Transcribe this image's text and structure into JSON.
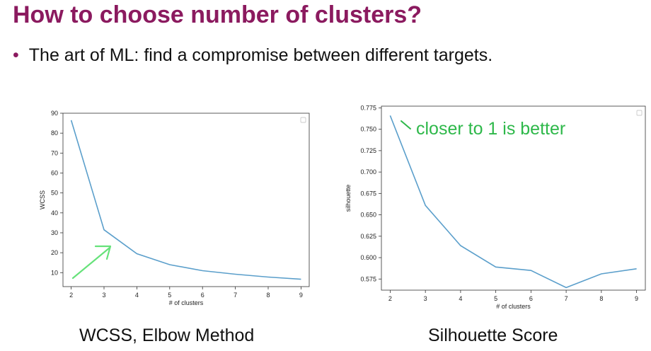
{
  "slide": {
    "title": "How to choose number of clusters?",
    "bullet": "The art of ML: find a compromise between different targets.",
    "captions": [
      "WCSS,  Elbow Method",
      "Silhouette Score"
    ],
    "annotation": "closer to 1 is better",
    "colors": {
      "title": "#8b1a5f",
      "line": "#5b9fcb",
      "annotation": "#2eb84a",
      "arrow": "#66e27a"
    }
  },
  "chart_data": [
    {
      "type": "line",
      "title": "",
      "xlabel": "# of clusters",
      "ylabel": "WCSS",
      "x": [
        2,
        3,
        4,
        5,
        6,
        7,
        8,
        9
      ],
      "values": [
        86.5,
        31.5,
        19.5,
        14,
        11,
        9.2,
        7.8,
        6.7
      ],
      "xlim": [
        1.75,
        9.25
      ],
      "ylim": [
        3,
        90
      ],
      "yticks": [
        "10",
        "20",
        "30",
        "40",
        "50",
        "60",
        "70",
        "80",
        "90"
      ],
      "xticks": [
        "2",
        "3",
        "4",
        "5",
        "6",
        "7",
        "8",
        "9"
      ],
      "grid": false,
      "legend": "top-right (empty)"
    },
    {
      "type": "line",
      "title": "",
      "xlabel": "# of clusters",
      "ylabel": "silhouette",
      "x": [
        2,
        3,
        4,
        5,
        6,
        7,
        8,
        9
      ],
      "values": [
        0.766,
        0.661,
        0.614,
        0.589,
        0.585,
        0.565,
        0.581,
        0.587
      ],
      "xlim": [
        1.75,
        9.25
      ],
      "ylim": [
        0.562,
        0.777
      ],
      "yticks": [
        "0.575",
        "0.600",
        "0.625",
        "0.650",
        "0.675",
        "0.700",
        "0.725",
        "0.750",
        "0.775"
      ],
      "xticks": [
        "2",
        "3",
        "4",
        "5",
        "6",
        "7",
        "8",
        "9"
      ],
      "grid": false,
      "legend": "top-right (empty)"
    }
  ]
}
